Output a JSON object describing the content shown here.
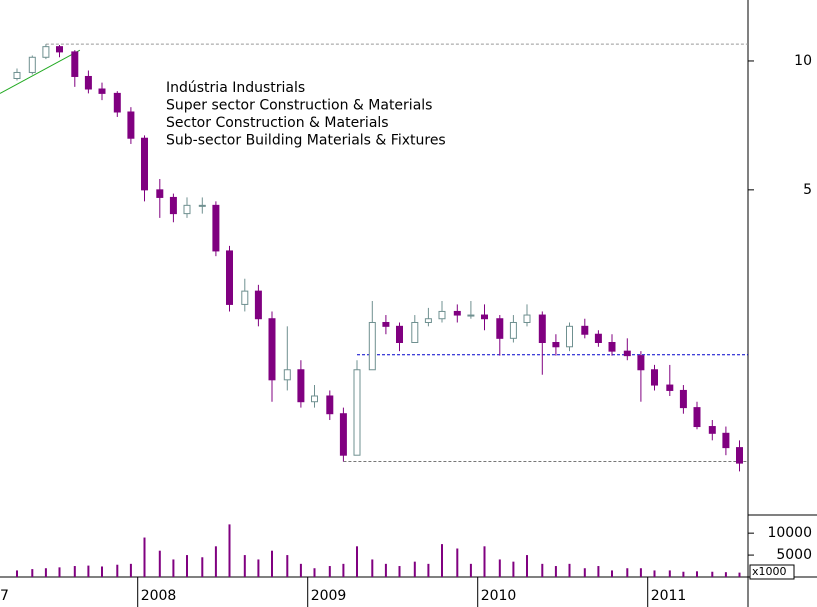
{
  "chart_data": {
    "type": "candlestick",
    "annotations": [
      "Indústria Industrials",
      "Super sector Construction & Materials",
      "Sector Construction & Materials",
      "Sub-sector Building Materials & Fixtures"
    ],
    "x": [
      2007.29,
      2007.38,
      2007.46,
      2007.54,
      2007.63,
      2007.71,
      2007.79,
      2007.88,
      2007.96,
      2008.04,
      2008.13,
      2008.21,
      2008.29,
      2008.38,
      2008.46,
      2008.54,
      2008.63,
      2008.71,
      2008.79,
      2008.88,
      2008.96,
      2009.04,
      2009.13,
      2009.21,
      2009.29,
      2009.38,
      2009.46,
      2009.54,
      2009.63,
      2009.71,
      2009.79,
      2009.88,
      2009.96,
      2010.04,
      2010.13,
      2010.21,
      2010.29,
      2010.38,
      2010.46,
      2010.54,
      2010.63,
      2010.71,
      2010.79,
      2010.88,
      2010.96,
      2011.04,
      2011.13,
      2011.21,
      2011.29,
      2011.38,
      2011.46,
      2011.54
    ],
    "open": [
      9.1,
      9.4,
      10.2,
      10.8,
      10.5,
      9.2,
      8.6,
      8.4,
      7.6,
      6.6,
      5.0,
      4.8,
      4.4,
      4.6,
      4.6,
      3.6,
      2.7,
      2.9,
      2.5,
      1.8,
      1.9,
      1.6,
      1.65,
      1.5,
      1.2,
      1.9,
      2.45,
      2.4,
      2.2,
      2.45,
      2.5,
      2.6,
      2.55,
      2.55,
      2.5,
      2.25,
      2.45,
      2.55,
      2.2,
      2.15,
      2.4,
      2.3,
      2.2,
      2.1,
      2.05,
      1.9,
      1.75,
      1.7,
      1.55,
      1.4,
      1.35,
      1.25
    ],
    "high": [
      9.6,
      10.3,
      10.95,
      10.9,
      10.6,
      9.5,
      8.9,
      8.5,
      7.8,
      6.7,
      5.3,
      4.9,
      4.8,
      4.8,
      4.7,
      3.7,
      3.1,
      3.0,
      2.6,
      2.4,
      2.0,
      1.75,
      1.7,
      1.55,
      2.0,
      2.75,
      2.55,
      2.45,
      2.55,
      2.65,
      2.75,
      2.7,
      2.75,
      2.7,
      2.55,
      2.55,
      2.7,
      2.6,
      2.3,
      2.45,
      2.5,
      2.35,
      2.3,
      2.25,
      2.1,
      1.95,
      1.95,
      1.75,
      1.6,
      1.45,
      1.4,
      1.3
    ],
    "low": [
      9.0,
      9.3,
      10.1,
      10.2,
      8.7,
      8.4,
      8.1,
      7.4,
      6.4,
      4.7,
      4.3,
      4.2,
      4.3,
      4.4,
      3.5,
      2.6,
      2.6,
      2.4,
      1.6,
      1.7,
      1.55,
      1.55,
      1.45,
      1.16,
      1.2,
      1.9,
      2.3,
      2.1,
      2.2,
      2.4,
      2.45,
      2.45,
      2.5,
      2.35,
      2.05,
      2.2,
      2.4,
      1.85,
      2.05,
      2.1,
      2.25,
      2.15,
      2.05,
      2.0,
      1.6,
      1.7,
      1.65,
      1.5,
      1.38,
      1.3,
      1.2,
      1.1
    ],
    "close": [
      9.4,
      10.2,
      10.8,
      10.5,
      9.2,
      8.6,
      8.4,
      7.6,
      6.6,
      5.0,
      4.8,
      4.4,
      4.6,
      4.6,
      3.6,
      2.7,
      2.9,
      2.5,
      1.8,
      1.9,
      1.6,
      1.65,
      1.5,
      1.2,
      1.9,
      2.45,
      2.4,
      2.2,
      2.45,
      2.5,
      2.6,
      2.55,
      2.55,
      2.5,
      2.25,
      2.45,
      2.55,
      2.2,
      2.15,
      2.4,
      2.3,
      2.2,
      2.1,
      2.05,
      1.9,
      1.75,
      1.7,
      1.55,
      1.4,
      1.35,
      1.25,
      1.15
    ],
    "volume": [
      1500,
      1800,
      2000,
      2200,
      2500,
      2600,
      2400,
      2800,
      3000,
      9000,
      6000,
      4000,
      5000,
      4500,
      7000,
      12000,
      5000,
      4000,
      6000,
      5000,
      3000,
      2000,
      2500,
      3000,
      7000,
      4000,
      3000,
      2500,
      3500,
      3000,
      7500,
      6500,
      3000,
      7000,
      4000,
      3500,
      5000,
      3000,
      2500,
      3000,
      2000,
      2500,
      1500,
      2000,
      2000,
      1500,
      1500,
      1200,
      1300,
      1200,
      1100,
      1000
    ],
    "up_color": "#6f9090",
    "down_color": "#800080",
    "volume_color": "#800080",
    "log_scale": true,
    "xlim": [
      2007.19,
      2011.59
    ],
    "xticks": [
      {
        "value": 2007,
        "label": "7"
      },
      2008,
      2009,
      2010,
      2011
    ],
    "ylim": [
      0.87,
      13.88
    ],
    "yticks": [
      5,
      10
    ],
    "volume_ylim": [
      0,
      13000
    ],
    "volume_yticks": [
      5000,
      10000
    ],
    "volume_unit": "x1000",
    "levels": [
      {
        "value": 10.95,
        "x_start": 2007.46,
        "color": "#999999"
      },
      {
        "value": 2.06,
        "x_start": 2009.29,
        "color": "#0000cc"
      },
      {
        "value": 1.16,
        "x_start": 2009.21,
        "color": "#777777"
      }
    ],
    "trendline": {
      "x": [
        2007.19,
        2007.66
      ],
      "y": [
        8.4,
        10.6
      ],
      "color": "#22aa22"
    }
  }
}
